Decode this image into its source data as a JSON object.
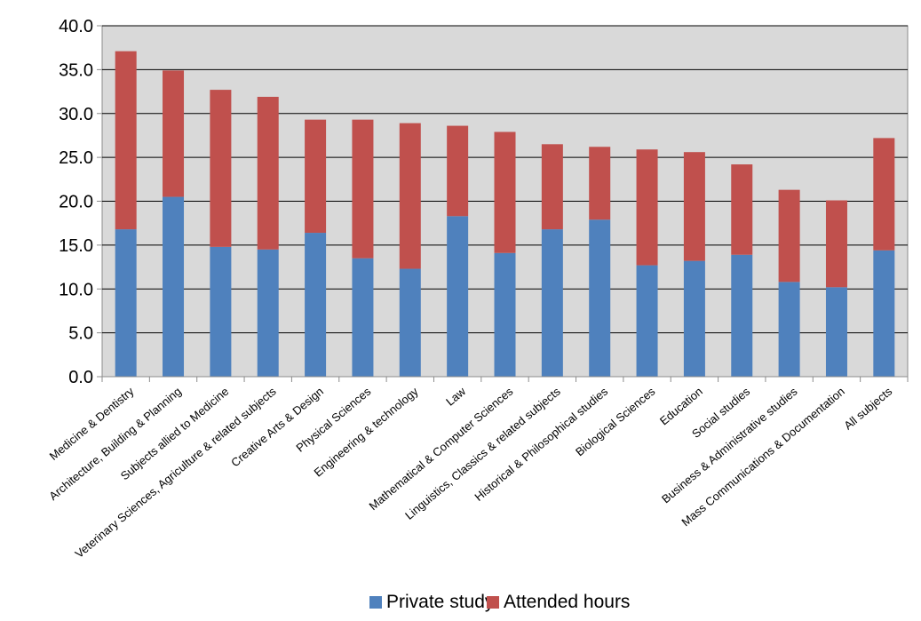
{
  "chart_data": {
    "type": "bar",
    "stacked": true,
    "categories": [
      "Medicine & Dentistry",
      "Architecture, Building & Planning",
      "Subjects allied to Medicine",
      "Veterinary Sciences, Agriculture & related subjects",
      "Creative Arts & Design",
      "Physical Sciences",
      "Engineering & technology",
      "Law",
      "Mathematical & Computer Sciences",
      "Linguistics, Classics & related subjects",
      "Historical & Philosophical studies",
      "Biological Sciences",
      "Education",
      "Social studies",
      "Business & Administrative studies",
      "Mass Communications & Documentation",
      "All subjects"
    ],
    "series": [
      {
        "name": "Private study",
        "color": "#4F81BD",
        "values": [
          16.8,
          20.5,
          14.8,
          14.5,
          16.4,
          13.5,
          12.3,
          18.3,
          14.1,
          16.8,
          17.9,
          12.7,
          13.2,
          13.9,
          10.8,
          10.2,
          14.4
        ]
      },
      {
        "name": "Attended hours",
        "color": "#C0504D",
        "values": [
          20.3,
          14.4,
          17.9,
          17.4,
          12.9,
          15.8,
          16.6,
          10.3,
          13.8,
          9.7,
          8.3,
          13.2,
          12.4,
          10.3,
          10.5,
          9.9,
          12.8
        ]
      }
    ],
    "ylim": [
      0,
      40
    ],
    "yticks": [
      "0.0",
      "5.0",
      "10.0",
      "15.0",
      "20.0",
      "25.0",
      "30.0",
      "35.0",
      "40.0"
    ],
    "grid": true,
    "plot_background": "#D9D9D9",
    "legend_position": "bottom"
  }
}
